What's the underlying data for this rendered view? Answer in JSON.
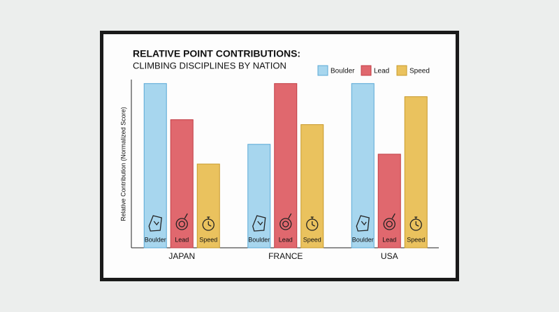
{
  "chart_data": {
    "type": "bar",
    "title": "RELATIVE POINT CONTRIBUTIONS:",
    "subtitle": "CLIMBING DISCIPLINES BY NATION",
    "y_label": "Relative Contribution (Normalized Score)",
    "categories": [
      "JAPAN",
      "FRANCE",
      "USA"
    ],
    "series": [
      {
        "name": "Boulder",
        "color": "#a7d6ee",
        "values": [
          1.0,
          0.63,
          1.0
        ]
      },
      {
        "name": "Lead",
        "color": "#e0686e",
        "values": [
          0.78,
          1.0,
          0.57
        ]
      },
      {
        "name": "Speed",
        "color": "#eac25e",
        "values": [
          0.51,
          0.75,
          0.92
        ]
      }
    ],
    "ylim": [
      0,
      1.02
    ]
  }
}
